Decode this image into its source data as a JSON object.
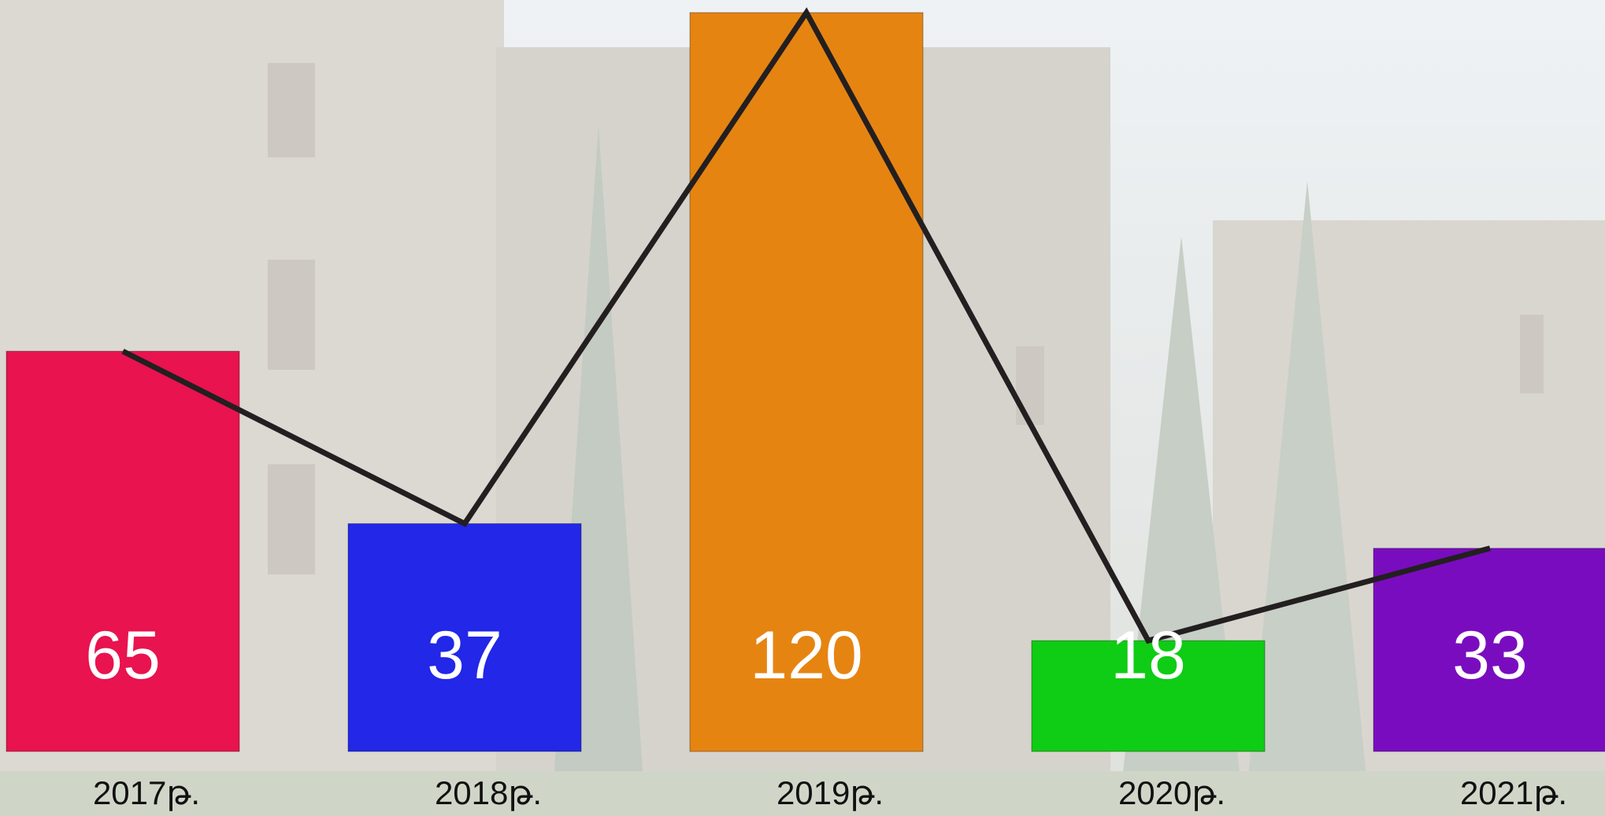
{
  "chart_data": {
    "type": "bar",
    "categories": [
      "2017թ.",
      "2018թ.",
      "2019թ.",
      "2020թ.",
      "2021թ."
    ],
    "values": [
      65,
      37,
      120,
      18,
      33
    ],
    "colors": [
      "#e8134f",
      "#2227e8",
      "#e68412",
      "#0fcc14",
      "#7a0cbf"
    ],
    "line_color": "#231f20"
  }
}
